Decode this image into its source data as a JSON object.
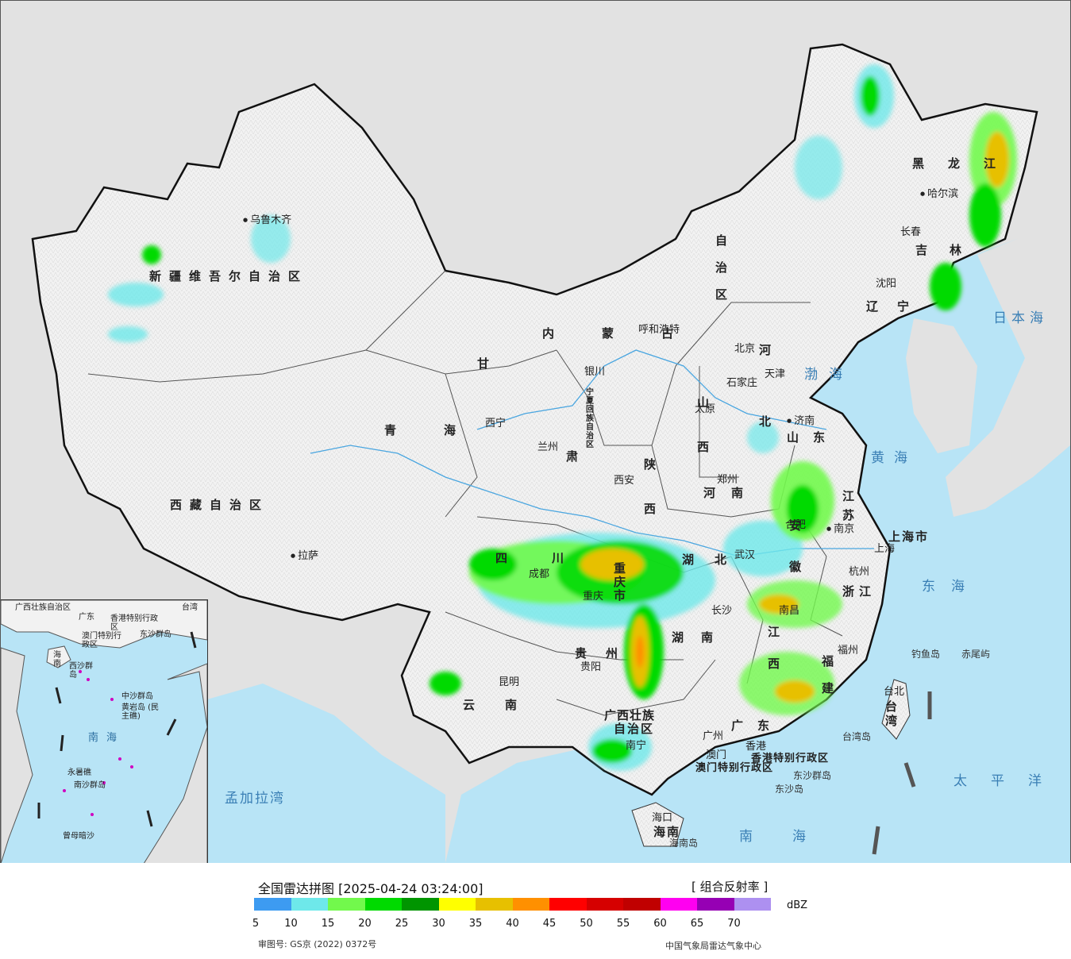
{
  "map": {
    "province_labels": {
      "xinjiang": "新疆维吾尔自治区",
      "xizang": "西藏自治区",
      "qinghai": "青海",
      "gansu": "甘",
      "gansu2": "肃",
      "neimenggu": "内蒙古",
      "neimenggu_zizhiqu": "自治区",
      "heilongjiang": "黑龙江",
      "jilin": "吉林",
      "liaoning": "辽宁",
      "hebei": "河北",
      "shanxi": "山西",
      "shaanxi": "陕西",
      "shandong": "山东",
      "henan": "河南",
      "jiangsu": "江苏",
      "anhui": "安徽",
      "hubei": "湖北",
      "hunan": "湖南",
      "jiangxi": "江西",
      "zhejiang": "浙江",
      "fujian": "福建",
      "sichuan": "四川",
      "chongqing": "重庆市",
      "guizhou": "贵州",
      "yunnan": "云南",
      "guangxi": "广西壮族",
      "guangxi2": "自治区",
      "guangdong": "广东",
      "hainan": "海南",
      "ningxia": "宁夏回族自治区",
      "shanghai": "上海市",
      "taiwan": "台湾",
      "xianggang": "香港特别行政区",
      "aomen": "澳门特别行政区"
    },
    "cities": {
      "urumqi": "乌鲁木齐",
      "lhasa": "拉萨",
      "xining": "西宁",
      "lanzhou": "兰州",
      "yinchuan": "银川",
      "hohhot": "呼和浩特",
      "harbin": "哈尔滨",
      "changchun": "长春",
      "shenyang": "沈阳",
      "beijing": "北京",
      "tianjin": "天津",
      "shijiazhuang": "石家庄",
      "taiyuan": "太原",
      "jinan": "济南",
      "zhengzhou": "郑州",
      "xian": "西安",
      "nanjing": "南京",
      "hefei": "合肥",
      "shanghai": "上海",
      "hangzhou": "杭州",
      "wuhan": "武汉",
      "changsha": "长沙",
      "nanchang": "南昌",
      "fuzhou": "福州",
      "chengdu": "成都",
      "chongqing": "重庆",
      "guiyang": "贵阳",
      "kunming": "昆明",
      "nanning": "南宁",
      "guangzhou": "广州",
      "xianggang": "香港",
      "aomen": "澳门",
      "haikou": "海口",
      "taibei": "台北"
    },
    "seas": {
      "ribenhai": "日本海",
      "bohai": "渤海",
      "huanghai": "黄海",
      "donghai": "东海",
      "taipingyang": "太平洋",
      "nanhai": "南海",
      "mengjiala": "孟加拉湾"
    },
    "islands": {
      "diaoyu": "钓鱼岛",
      "chiwei": "赤尾屿",
      "dongsha_qundao": "东沙群岛",
      "dongsha_dao": "东沙岛",
      "hainan_dao": "海南岛",
      "taiwan_dao": "台湾岛"
    }
  },
  "inset": {
    "labels": {
      "guangxi": "广西壮族自治区",
      "guangdong": "广东",
      "taiwan": "台湾",
      "xianggang": "香港特别行政区",
      "aomen": "澳门特别行政区",
      "dongsha": "东沙群岛",
      "hainan": "海南",
      "xisha": "西沙群岛",
      "zhongsha": "中沙群岛",
      "huangyan": "黄岩岛 (民主礁)",
      "yongshu": "永暑礁",
      "nansha": "南沙群岛",
      "zengmu": "曾母暗沙"
    },
    "sea": "南海"
  },
  "legend": {
    "title": "全国雷达拼图 [2025-04-24 03:24:00]",
    "product": "[ 组合反射率 ]",
    "unit": "dBZ",
    "ticks": [
      "5",
      "10",
      "15",
      "20",
      "25",
      "30",
      "35",
      "40",
      "45",
      "50",
      "55",
      "60",
      "65",
      "70"
    ],
    "colors": [
      "#3d9bf1",
      "#6ee8ea",
      "#72f94c",
      "#00da00",
      "#009500",
      "#ffff00",
      "#e7c000",
      "#ff9000",
      "#ff0000",
      "#d60000",
      "#c00000",
      "#ff00f0",
      "#9600b4",
      "#ad90f0"
    ],
    "approval": "审图号: GS京 (2022) 0372号",
    "source": "中国气象局雷达气象中心"
  }
}
